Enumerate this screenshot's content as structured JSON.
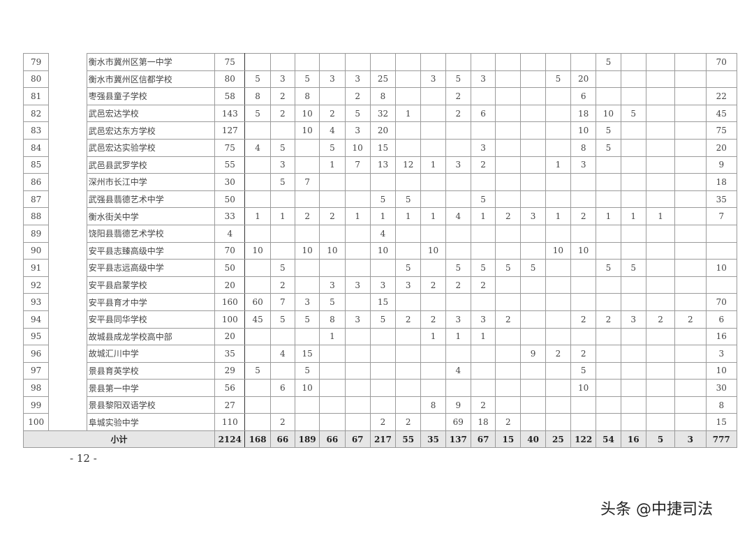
{
  "table": {
    "rows": [
      {
        "no": "79",
        "name": "衡水市冀州区第一中学",
        "total": "75",
        "cells": [
          "",
          "",
          "",
          "",
          "",
          "",
          "",
          "",
          "",
          "",
          "",
          "",
          "",
          "",
          "5",
          "",
          "",
          "",
          "70"
        ]
      },
      {
        "no": "80",
        "name": "衡水市冀州区信都学校",
        "total": "80",
        "cells": [
          "5",
          "3",
          "5",
          "3",
          "3",
          "25",
          "",
          "3",
          "5",
          "3",
          "",
          "",
          "5",
          "20",
          "",
          "",
          "",
          "",
          ""
        ]
      },
      {
        "no": "81",
        "name": "枣强县童子学校",
        "total": "58",
        "cells": [
          "8",
          "2",
          "8",
          "",
          "2",
          "8",
          "",
          "",
          "2",
          "",
          "",
          "",
          "",
          "6",
          "",
          "",
          "",
          "",
          "22"
        ]
      },
      {
        "no": "82",
        "name": "武邑宏达学校",
        "total": "143",
        "cells": [
          "5",
          "2",
          "10",
          "2",
          "5",
          "32",
          "1",
          "",
          "2",
          "6",
          "",
          "",
          "",
          "18",
          "10",
          "5",
          "",
          "",
          "45"
        ]
      },
      {
        "no": "83",
        "name": "武邑宏达东方学校",
        "total": "127",
        "cells": [
          "",
          "",
          "10",
          "4",
          "3",
          "20",
          "",
          "",
          "",
          "",
          "",
          "",
          "",
          "10",
          "5",
          "",
          "",
          "",
          "75"
        ]
      },
      {
        "no": "84",
        "name": "武邑宏达实验学校",
        "total": "75",
        "cells": [
          "4",
          "5",
          "",
          "5",
          "10",
          "15",
          "",
          "",
          "",
          "3",
          "",
          "",
          "",
          "8",
          "5",
          "",
          "",
          "",
          "20"
        ]
      },
      {
        "no": "85",
        "name": "武邑县武罗学校",
        "total": "55",
        "cells": [
          "",
          "3",
          "",
          "1",
          "7",
          "13",
          "12",
          "1",
          "3",
          "2",
          "",
          "",
          "1",
          "3",
          "",
          "",
          "",
          "",
          "9"
        ]
      },
      {
        "no": "86",
        "name": "深州市长江中学",
        "total": "30",
        "cells": [
          "",
          "5",
          "7",
          "",
          "",
          "",
          "",
          "",
          "",
          "",
          "",
          "",
          "",
          "",
          "",
          "",
          "",
          "",
          "18"
        ]
      },
      {
        "no": "87",
        "name": "武强县翡德艺术中学",
        "total": "50",
        "cells": [
          "",
          "",
          "",
          "",
          "",
          "5",
          "5",
          "",
          "",
          "5",
          "",
          "",
          "",
          "",
          "",
          "",
          "",
          "",
          "35"
        ]
      },
      {
        "no": "88",
        "name": "衡水街关中学",
        "total": "33",
        "cells": [
          "1",
          "1",
          "2",
          "2",
          "1",
          "1",
          "1",
          "1",
          "4",
          "1",
          "2",
          "3",
          "1",
          "2",
          "1",
          "1",
          "1",
          "",
          "7"
        ]
      },
      {
        "no": "89",
        "name": "饶阳县翡德艺术学校",
        "total": "4",
        "cells": [
          "",
          "",
          "",
          "",
          "",
          "4",
          "",
          "",
          "",
          "",
          "",
          "",
          "",
          "",
          "",
          "",
          "",
          "",
          ""
        ]
      },
      {
        "no": "90",
        "name": "安平县志臻高级中学",
        "total": "70",
        "cells": [
          "10",
          "",
          "10",
          "10",
          "",
          "10",
          "",
          "10",
          "",
          "",
          "",
          "",
          "10",
          "10",
          "",
          "",
          "",
          "",
          ""
        ]
      },
      {
        "no": "91",
        "name": "安平县志远高级中学",
        "total": "50",
        "cells": [
          "",
          "5",
          "",
          "",
          "",
          "",
          "5",
          "",
          "5",
          "5",
          "5",
          "5",
          "",
          "",
          "5",
          "5",
          "",
          "",
          "10"
        ]
      },
      {
        "no": "92",
        "name": "安平县启蒙学校",
        "total": "20",
        "cells": [
          "",
          "2",
          "",
          "3",
          "3",
          "3",
          "3",
          "2",
          "2",
          "2",
          "",
          "",
          "",
          "",
          "",
          "",
          "",
          "",
          ""
        ]
      },
      {
        "no": "93",
        "name": "安平县育才中学",
        "total": "160",
        "cells": [
          "60",
          "7",
          "3",
          "5",
          "",
          "15",
          "",
          "",
          "",
          "",
          "",
          "",
          "",
          "",
          "",
          "",
          "",
          "",
          "70"
        ]
      },
      {
        "no": "94",
        "name": "安平县同华学校",
        "total": "100",
        "cells": [
          "45",
          "5",
          "5",
          "8",
          "3",
          "5",
          "2",
          "2",
          "3",
          "3",
          "2",
          "",
          "",
          "2",
          "2",
          "3",
          "2",
          "2",
          "6"
        ]
      },
      {
        "no": "95",
        "name": "故城县成龙学校高中部",
        "total": "20",
        "cells": [
          "",
          "",
          "",
          "1",
          "",
          "",
          "",
          "1",
          "1",
          "1",
          "",
          "",
          "",
          "",
          "",
          "",
          "",
          "",
          "16"
        ]
      },
      {
        "no": "96",
        "name": "故城汇川中学",
        "total": "35",
        "cells": [
          "",
          "4",
          "15",
          "",
          "",
          "",
          "",
          "",
          "",
          "",
          "",
          "9",
          "2",
          "2",
          "",
          "",
          "",
          "",
          "3"
        ]
      },
      {
        "no": "97",
        "name": "景县育英学校",
        "total": "29",
        "cells": [
          "5",
          "",
          "5",
          "",
          "",
          "",
          "",
          "",
          "4",
          "",
          "",
          "",
          "",
          "5",
          "",
          "",
          "",
          "",
          "10"
        ]
      },
      {
        "no": "98",
        "name": "景县第一中学",
        "total": "56",
        "cells": [
          "",
          "6",
          "10",
          "",
          "",
          "",
          "",
          "",
          "",
          "",
          "",
          "",
          "",
          "10",
          "",
          "",
          "",
          "",
          "30"
        ]
      },
      {
        "no": "99",
        "name": "景县黎阳双语学校",
        "total": "27",
        "cells": [
          "",
          "",
          "",
          "",
          "",
          "",
          "",
          "8",
          "9",
          "2",
          "",
          "",
          "",
          "",
          "",
          "",
          "",
          "",
          "8"
        ]
      },
      {
        "no": "100",
        "name": "阜城实验中学",
        "total": "110",
        "cells": [
          "",
          "2",
          "",
          "",
          "",
          "2",
          "2",
          "",
          "69",
          "18",
          "2",
          "",
          "",
          "",
          "",
          "",
          "",
          "",
          "15"
        ]
      }
    ],
    "subtotal": {
      "label": "小计",
      "total": "2124",
      "cells": [
        "168",
        "66",
        "189",
        "66",
        "67",
        "217",
        "55",
        "35",
        "137",
        "67",
        "15",
        "40",
        "25",
        "122",
        "54",
        "16",
        "5",
        "3",
        "777"
      ]
    }
  },
  "footer": {
    "page_number": "- 12 -"
  },
  "watermark": "头条 @中捷司法"
}
